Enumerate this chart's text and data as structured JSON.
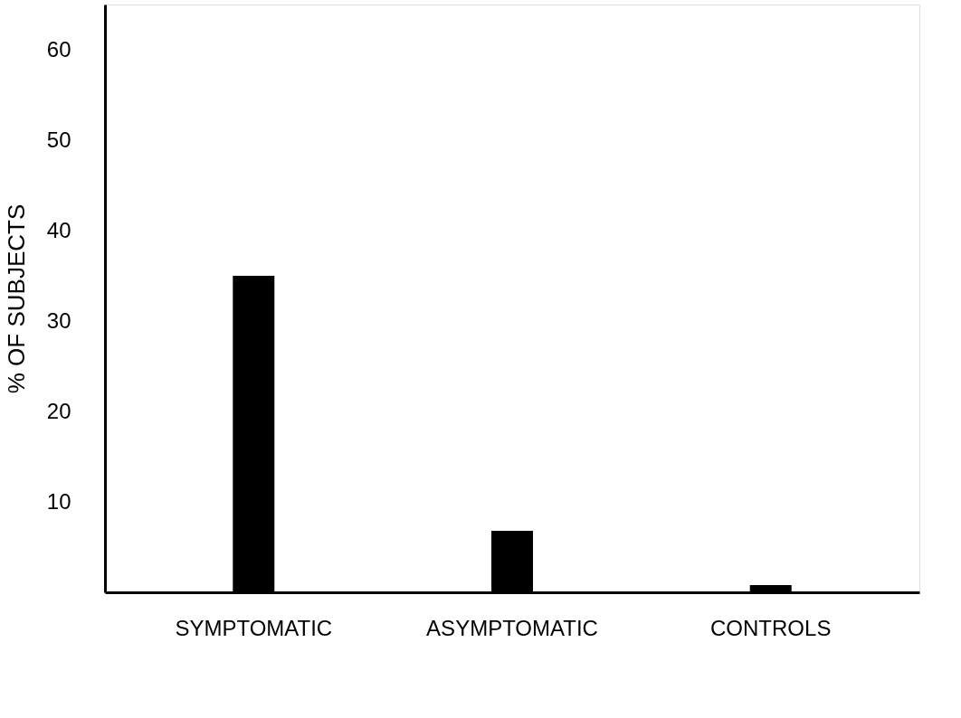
{
  "chart_data": {
    "type": "bar",
    "ylabel": "% OF SUBJECTS",
    "categories": [
      "SYMPTOMATIC",
      "ASYMPTOMATIC",
      "CONTROLS"
    ],
    "values": [
      35,
      6.8,
      0.8
    ],
    "color": "#000000",
    "ylim": [
      0,
      65
    ],
    "yticks": [
      10,
      20,
      30,
      40,
      50,
      60
    ],
    "grid": false
  }
}
